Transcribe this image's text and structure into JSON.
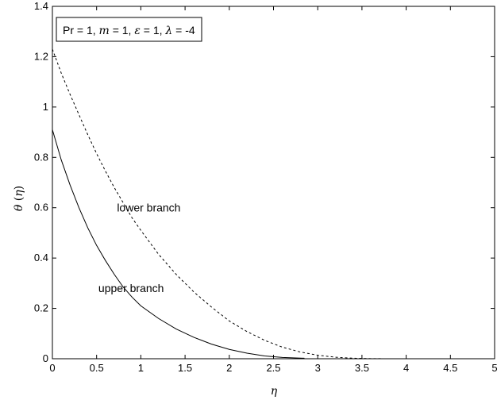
{
  "chart_data": {
    "type": "line",
    "xlabel": "η",
    "ylabel_symbol": "θ",
    "ylabel_arg": "η",
    "xlim": [
      0,
      5
    ],
    "ylim": [
      0,
      1.4
    ],
    "xticks": [
      0,
      0.5,
      1,
      1.5,
      2,
      2.5,
      3,
      3.5,
      4,
      4.5,
      5
    ],
    "xtick_labels": [
      "0",
      "0.5",
      "1",
      "1.5",
      "2",
      "2.5",
      "3",
      "3.5",
      "4",
      "4.5",
      "5"
    ],
    "yticks": [
      0,
      0.2,
      0.4,
      0.6,
      0.8,
      1,
      1.2,
      1.4
    ],
    "ytick_labels": [
      "0",
      "0.2",
      "0.4",
      "0.6",
      "0.8",
      "1",
      "1.2",
      "1.4"
    ],
    "grid": false,
    "legend_box": {
      "position": "top-left",
      "parts": [
        {
          "text": "Pr = 1, ",
          "italic": false
        },
        {
          "text": "m",
          "italic": true
        },
        {
          "text": " = 1, ",
          "italic": false
        },
        {
          "text": "ε",
          "italic": true
        },
        {
          "text": " = 1, ",
          "italic": false
        },
        {
          "text": "λ",
          "italic": true
        },
        {
          "text": " = -4",
          "italic": false
        }
      ]
    },
    "series": [
      {
        "name": "lower branch",
        "style": "dashed",
        "color": "#000000",
        "x": [
          0,
          0.1,
          0.2,
          0.3,
          0.4,
          0.5,
          0.6,
          0.7,
          0.8,
          0.9,
          1.0,
          1.2,
          1.4,
          1.6,
          1.8,
          2.0,
          2.2,
          2.4,
          2.6,
          2.8,
          3.0,
          3.2,
          3.4,
          3.6,
          3.8
        ],
        "y": [
          1.23,
          1.135,
          1.05,
          0.97,
          0.89,
          0.815,
          0.745,
          0.68,
          0.62,
          0.56,
          0.51,
          0.415,
          0.335,
          0.265,
          0.205,
          0.15,
          0.108,
          0.073,
          0.046,
          0.027,
          0.014,
          0.006,
          0.002,
          0.0005,
          0
        ]
      },
      {
        "name": "upper branch",
        "style": "solid",
        "color": "#000000",
        "x": [
          0,
          0.1,
          0.2,
          0.3,
          0.4,
          0.5,
          0.6,
          0.7,
          0.8,
          0.9,
          1.0,
          1.2,
          1.4,
          1.6,
          1.8,
          2.0,
          2.2,
          2.4,
          2.6,
          2.85
        ],
        "y": [
          0.91,
          0.79,
          0.69,
          0.6,
          0.52,
          0.45,
          0.39,
          0.335,
          0.285,
          0.245,
          0.21,
          0.16,
          0.118,
          0.085,
          0.058,
          0.037,
          0.022,
          0.011,
          0.005,
          0.002
        ]
      }
    ],
    "annotations": [
      {
        "text": "lower branch",
        "x": 0.73,
        "y": 0.6
      },
      {
        "text": "upper branch",
        "x": 0.52,
        "y": 0.28
      }
    ]
  }
}
